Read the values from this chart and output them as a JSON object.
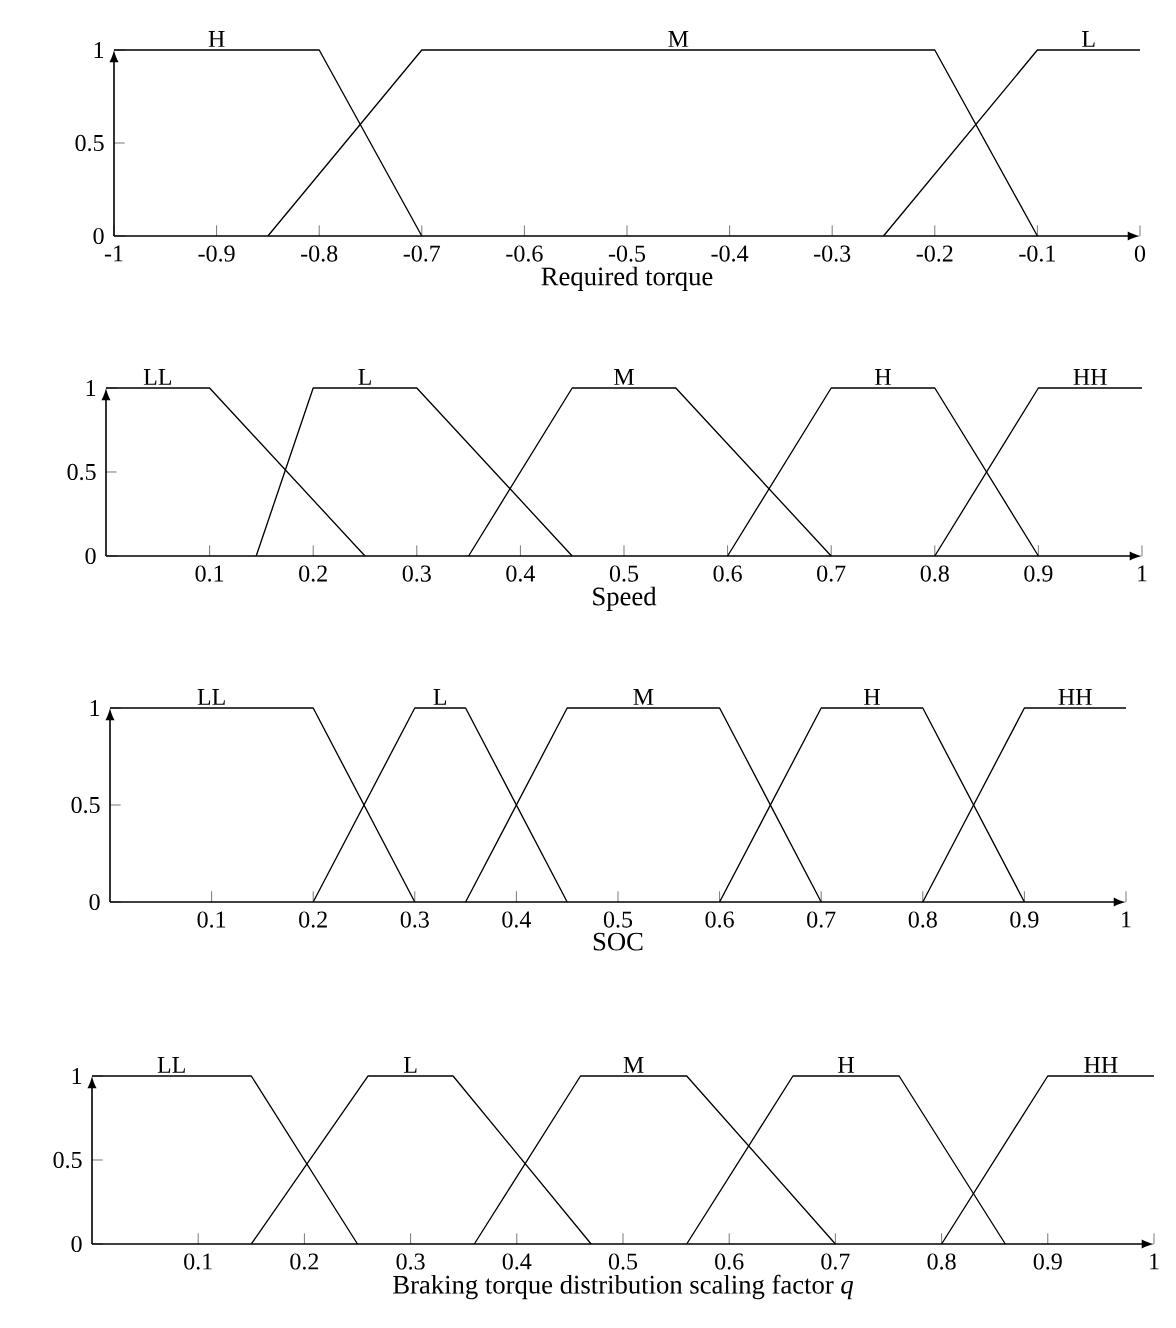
{
  "chart_data": [
    {
      "type": "line",
      "xlabel": "Required torque",
      "xlim": [
        -1,
        0
      ],
      "ylim": [
        0,
        1
      ],
      "xticks": [
        -1,
        -0.9,
        -0.8,
        -0.7,
        -0.6,
        -0.5,
        -0.4,
        -0.3,
        -0.2,
        -0.1,
        0
      ],
      "yticks": [
        0,
        0.5,
        1
      ],
      "series": [
        {
          "name": "H",
          "color": "#000000",
          "x": [
            -1,
            -0.8,
            -0.7
          ],
          "values": [
            1,
            1,
            0
          ]
        },
        {
          "name": "M",
          "color": "#000000",
          "x": [
            -0.85,
            -0.7,
            -0.2,
            -0.1
          ],
          "values": [
            0,
            1,
            1,
            0
          ]
        },
        {
          "name": "L",
          "color": "#000000",
          "x": [
            -0.25,
            -0.1,
            0
          ],
          "values": [
            0,
            1,
            1
          ]
        }
      ]
    },
    {
      "type": "line",
      "xlabel": "Speed",
      "xlim": [
        0,
        1
      ],
      "ylim": [
        0,
        1
      ],
      "xticks": [
        0.1,
        0.2,
        0.3,
        0.4,
        0.5,
        0.6,
        0.7,
        0.8,
        0.9,
        1
      ],
      "yticks": [
        0,
        0.5,
        1
      ],
      "series": [
        {
          "name": "LL",
          "color": "#000000",
          "x": [
            0,
            0.1,
            0.25
          ],
          "values": [
            1,
            1,
            0
          ]
        },
        {
          "name": "L",
          "color": "#000000",
          "x": [
            0.145,
            0.2,
            0.3,
            0.45
          ],
          "values": [
            0,
            1,
            1,
            0
          ]
        },
        {
          "name": "M",
          "color": "#000000",
          "x": [
            0.35,
            0.45,
            0.55,
            0.7
          ],
          "values": [
            0,
            1,
            1,
            0
          ]
        },
        {
          "name": "H",
          "color": "#000000",
          "x": [
            0.6,
            0.7,
            0.8,
            0.9
          ],
          "values": [
            0,
            1,
            1,
            0
          ]
        },
        {
          "name": "HH",
          "color": "#000000",
          "x": [
            0.8,
            0.9,
            1
          ],
          "values": [
            0,
            1,
            1
          ]
        }
      ]
    },
    {
      "type": "line",
      "xlabel": "SOC",
      "xlim": [
        0,
        1
      ],
      "ylim": [
        0,
        1
      ],
      "xticks": [
        0.1,
        0.2,
        0.3,
        0.4,
        0.5,
        0.6,
        0.7,
        0.8,
        0.9,
        1
      ],
      "yticks": [
        0,
        0.5,
        1
      ],
      "series": [
        {
          "name": "LL",
          "color": "#000000",
          "x": [
            0,
            0.2,
            0.3
          ],
          "values": [
            1,
            1,
            0
          ]
        },
        {
          "name": "L",
          "color": "#000000",
          "x": [
            0.2,
            0.3,
            0.35,
            0.45
          ],
          "values": [
            0,
            1,
            1,
            0
          ]
        },
        {
          "name": "M",
          "color": "#000000",
          "x": [
            0.35,
            0.45,
            0.6,
            0.7
          ],
          "values": [
            0,
            1,
            1,
            0
          ]
        },
        {
          "name": "H",
          "color": "#000000",
          "x": [
            0.6,
            0.7,
            0.8,
            0.9
          ],
          "values": [
            0,
            1,
            1,
            0
          ]
        },
        {
          "name": "HH",
          "color": "#000000",
          "x": [
            0.8,
            0.9,
            1
          ],
          "values": [
            0,
            1,
            1
          ]
        }
      ]
    },
    {
      "type": "line",
      "xlabel": "Braking torque distribution scaling factor *q*",
      "xlim": [
        0,
        1
      ],
      "ylim": [
        0,
        1
      ],
      "xticks": [
        0.1,
        0.2,
        0.3,
        0.4,
        0.5,
        0.6,
        0.7,
        0.8,
        0.9,
        1
      ],
      "yticks": [
        0,
        0.5,
        1
      ],
      "series": [
        {
          "name": "LL",
          "color": "#000000",
          "x": [
            0,
            0.15,
            0.25
          ],
          "values": [
            1,
            1,
            0
          ]
        },
        {
          "name": "L",
          "color": "#000000",
          "x": [
            0.15,
            0.26,
            0.34,
            0.47
          ],
          "values": [
            0,
            1,
            1,
            0
          ]
        },
        {
          "name": "M",
          "color": "#000000",
          "x": [
            0.36,
            0.46,
            0.56,
            0.7
          ],
          "values": [
            0,
            1,
            1,
            0
          ]
        },
        {
          "name": "H",
          "color": "#000000",
          "x": [
            0.56,
            0.66,
            0.76,
            0.86
          ],
          "values": [
            0,
            1,
            1,
            0
          ]
        },
        {
          "name": "HH",
          "color": "#000000",
          "x": [
            0.8,
            0.9,
            1
          ],
          "values": [
            0,
            1,
            1
          ]
        }
      ]
    }
  ]
}
